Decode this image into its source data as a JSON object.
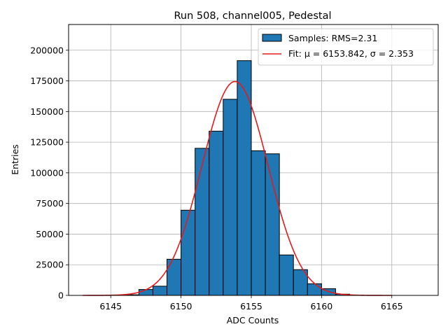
{
  "chart_data": {
    "type": "bar",
    "title": "Run 508, channel005, Pedestal",
    "xlabel": "ADC Counts",
    "ylabel": "Entries",
    "xlim": [
      6142,
      6168.3
    ],
    "ylim": [
      0,
      221000
    ],
    "grid": true,
    "legend_position": "upper-right",
    "x_ticks": [
      6145,
      6150,
      6155,
      6160,
      6165
    ],
    "y_ticks": [
      0,
      25000,
      50000,
      75000,
      100000,
      125000,
      150000,
      175000,
      200000
    ],
    "bin_width": 1,
    "bins": [
      {
        "left": 6146,
        "value": 500
      },
      {
        "left": 6147,
        "value": 4800
      },
      {
        "left": 6148,
        "value": 7500
      },
      {
        "left": 6149,
        "value": 29500
      },
      {
        "left": 6150,
        "value": 69500
      },
      {
        "left": 6151,
        "value": 120000
      },
      {
        "left": 6152,
        "value": 134000
      },
      {
        "left": 6153,
        "value": 160000
      },
      {
        "left": 6154,
        "value": 191500
      },
      {
        "left": 6155,
        "value": 118000
      },
      {
        "left": 6156,
        "value": 115500
      },
      {
        "left": 6157,
        "value": 33000
      },
      {
        "left": 6158,
        "value": 21000
      },
      {
        "left": 6159,
        "value": 9500
      },
      {
        "left": 6160,
        "value": 5500
      },
      {
        "left": 6161,
        "value": 1000
      }
    ],
    "fit": {
      "mu": 6153.842,
      "sigma": 2.353,
      "amplitude": 174500,
      "x_range": [
        6143,
        6165
      ]
    },
    "series": [
      {
        "name": "Samples: RMS=2.31",
        "kind": "histogram",
        "color": "#1f77b4"
      },
      {
        "name": "Fit: μ = 6153.842, σ = 2.353",
        "kind": "line",
        "color": "#e41a1c"
      }
    ]
  }
}
